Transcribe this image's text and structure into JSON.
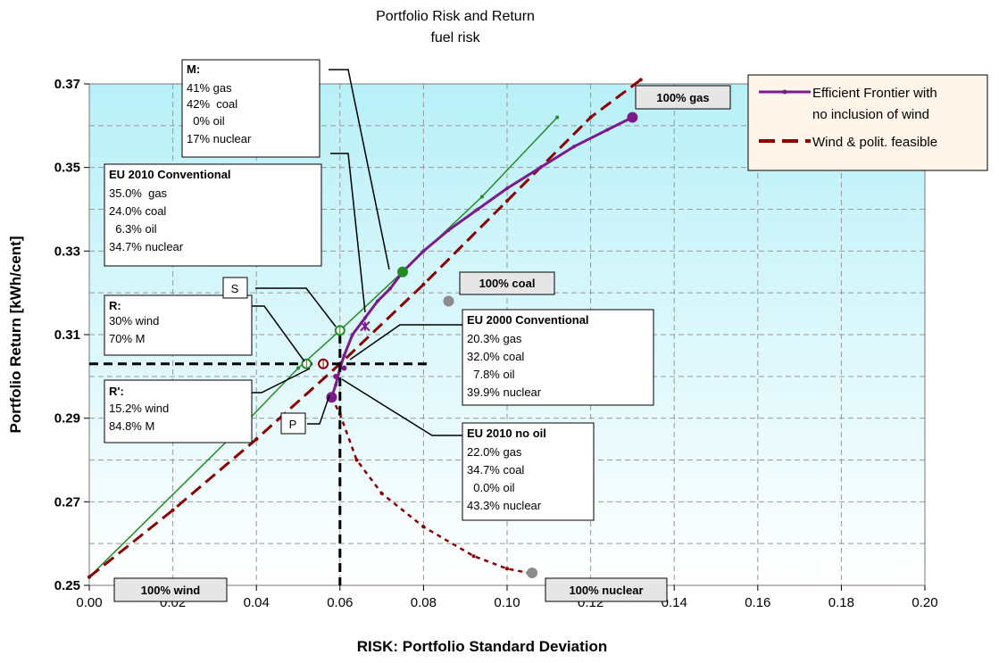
{
  "chart_data": {
    "type": "scatter",
    "title": "Portfolio Risk and Return",
    "subtitle": "fuel risk",
    "xlabel": "RISK:  Portfolio Standard Deviation",
    "ylabel": "Portfolio Return [kWh/cent]",
    "xlim": [
      0.0,
      0.2
    ],
    "ylim": [
      0.25,
      0.37
    ],
    "xticks": [
      "0.00",
      "0.02",
      "0.04",
      "0.06",
      "0.08",
      "0.10",
      "0.12",
      "0.14",
      "0.16",
      "0.18",
      "0.20"
    ],
    "yticks": [
      "0.25",
      "0.27",
      "0.29",
      "0.31",
      "0.33",
      "0.35",
      "0.37"
    ],
    "grid": true,
    "legend_position": "top-right",
    "colors": {
      "frontier": "#7b1a8c",
      "wind": "#8b0000",
      "green": "#228b22",
      "gray": "#8c8c8c",
      "plot_top": "#b8f0f8",
      "plot_bottom": "#ffffff"
    },
    "series": [
      {
        "name": "Efficient Frontier with no inclusion of wind",
        "style": "solid-purple",
        "x": [
          0.058,
          0.059,
          0.06,
          0.061,
          0.063,
          0.066,
          0.069,
          0.072,
          0.075,
          0.08,
          0.086,
          0.093,
          0.1,
          0.108,
          0.116,
          0.124,
          0.13
        ],
        "y": [
          0.295,
          0.298,
          0.302,
          0.305,
          0.31,
          0.314,
          0.318,
          0.321,
          0.325,
          0.33,
          0.335,
          0.34,
          0.345,
          0.35,
          0.355,
          0.359,
          0.362
        ]
      },
      {
        "name": "Wind & polit. feasible",
        "style": "dashed-darkred",
        "x": [
          0.0,
          0.02,
          0.04,
          0.06,
          0.08,
          0.1,
          0.12,
          0.132
        ],
        "y": [
          0.252,
          0.268,
          0.285,
          0.303,
          0.322,
          0.342,
          0.362,
          0.371
        ]
      },
      {
        "style": "solid-green",
        "x": [
          0.0,
          0.0375,
          0.05,
          0.06,
          0.075,
          0.094,
          0.112
        ],
        "y": [
          0.252,
          0.289,
          0.302,
          0.311,
          0.325,
          0.343,
          0.362
        ]
      },
      {
        "style": "dotted-darkred",
        "x": [
          0.058,
          0.06,
          0.064,
          0.07,
          0.08,
          0.092,
          0.1,
          0.105
        ],
        "y": [
          0.295,
          0.291,
          0.28,
          0.272,
          0.264,
          0.257,
          0.254,
          0.253
        ]
      }
    ],
    "markers": [
      {
        "x": 0.13,
        "y": 0.362,
        "color": "frontier",
        "shape": "dot",
        "r": 6
      },
      {
        "x": 0.058,
        "y": 0.295,
        "color": "frontier",
        "shape": "dot",
        "r": 6
      },
      {
        "x": 0.075,
        "y": 0.325,
        "color": "green",
        "shape": "dot",
        "r": 6
      },
      {
        "x": 0.086,
        "y": 0.318,
        "color": "gray",
        "shape": "dot",
        "r": 6
      },
      {
        "x": 0.106,
        "y": 0.253,
        "color": "gray",
        "shape": "dot",
        "r": 6
      },
      {
        "x": 0.06,
        "y": 0.311,
        "color": "green",
        "shape": "ring",
        "r": 5
      },
      {
        "x": 0.052,
        "y": 0.303,
        "color": "green",
        "shape": "ring",
        "r": 5
      },
      {
        "x": 0.056,
        "y": 0.303,
        "color": "wind",
        "shape": "ring",
        "r": 5
      },
      {
        "x": 0.061,
        "y": 0.302,
        "color": "frontier",
        "shape": "dot",
        "r": 3
      },
      {
        "x": 0.066,
        "y": 0.312,
        "color": "frontier",
        "shape": "star",
        "r": 5
      },
      {
        "x": 0.059,
        "y": 0.3,
        "color": "frontier",
        "shape": "dot",
        "r": 3
      }
    ],
    "crosshair": {
      "x": 0.06,
      "y": 0.303,
      "h_from": 0.0,
      "h_to": 0.082,
      "v_from": 0.25,
      "v_to": 0.31
    },
    "annotations": {
      "box_100gas": "100% gas",
      "box_100coal": "100% coal",
      "box_100wind": "100% wind",
      "box_100nuclear": "100% nuclear",
      "box_s": "S",
      "box_p": "P",
      "m": {
        "title": "M:",
        "lines": [
          "41% gas",
          "42%  coal",
          "  0% oil",
          "17% nuclear"
        ]
      },
      "eu2010c": {
        "title": "EU 2010 Conventional",
        "lines": [
          "35.0%  gas",
          "24.0% coal",
          "  6.3% oil",
          "34.7% nuclear"
        ]
      },
      "r": {
        "title": "R:",
        "lines": [
          "30% wind",
          "70% M"
        ]
      },
      "rprime": {
        "title": "R':",
        "lines": [
          "15.2% wind",
          "84.8% M"
        ]
      },
      "eu2000c": {
        "title": "EU 2000 Conventional",
        "lines": [
          "20.3% gas",
          "32.0% coal",
          "  7.8% oil",
          "39.9% nuclear"
        ]
      },
      "eu2010n": {
        "title": "EU 2010 no oil",
        "lines": [
          "22.0% gas",
          "34.7% coal",
          "  0.0% oil",
          "43.3% nuclear"
        ]
      }
    },
    "legend": {
      "item1": [
        "Efficient Frontier with",
        "no inclusion of wind"
      ],
      "item2": "Wind & polit. feasible"
    }
  }
}
